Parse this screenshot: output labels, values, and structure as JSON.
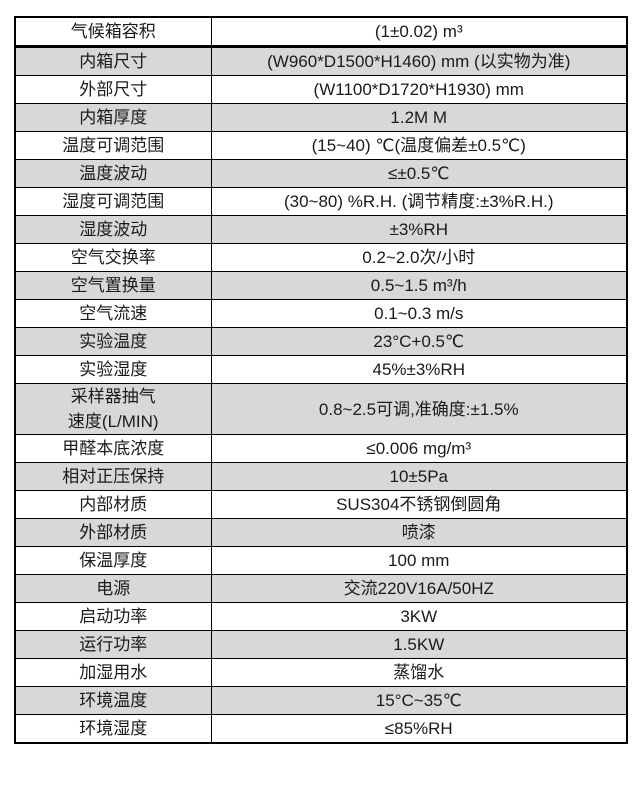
{
  "table": {
    "grey_row_color": "#d8d8d8",
    "border_color": "#000000",
    "rows": [
      {
        "label": "气候箱容积",
        "value": "(1±0.02) m³"
      },
      {
        "label": "内箱尺寸",
        "value": "(W960*D1500*H1460) mm (以实物为准)"
      },
      {
        "label": "外部尺寸",
        "value": "(W1100*D1720*H1930) mm"
      },
      {
        "label": "内箱厚度",
        "value": "1.2M M"
      },
      {
        "label": "温度可调范围",
        "value": "(15~40) ℃(温度偏差±0.5℃)"
      },
      {
        "label": "温度波动",
        "value": "≤±0.5℃"
      },
      {
        "label": "湿度可调范围",
        "value": "(30~80) %R.H. (调节精度:±3%R.H.)"
      },
      {
        "label": "湿度波动",
        "value": "±3%RH"
      },
      {
        "label": "空气交换率",
        "value": "0.2~2.0次/小时"
      },
      {
        "label": "空气置换量",
        "value": "0.5~1.5 m³/h"
      },
      {
        "label": "空气流速",
        "value": "0.1~0.3 m/s"
      },
      {
        "label": "实验温度",
        "value": "23°C+0.5℃"
      },
      {
        "label": "实验湿度",
        "value": "45%±3%RH"
      },
      {
        "label": "采样器抽气\n速度(L/MIN)",
        "value": "0.8~2.5可调,准确度:±1.5%"
      },
      {
        "label": "甲醛本底浓度",
        "value": "≤0.006 mg/m³"
      },
      {
        "label": "相对正压保持",
        "value": "10±5Pa"
      },
      {
        "label": "内部材质",
        "value": "SUS304不锈钢倒圆角"
      },
      {
        "label": "外部材质",
        "value": "喷漆"
      },
      {
        "label": "保温厚度",
        "value": "100 mm"
      },
      {
        "label": "电源",
        "value": "交流220V16A/50HZ"
      },
      {
        "label": "启动功率",
        "value": "3KW"
      },
      {
        "label": "运行功率",
        "value": "1.5KW"
      },
      {
        "label": "加湿用水",
        "value": "蒸馏水"
      },
      {
        "label": "环境温度",
        "value": "15°C~35℃"
      },
      {
        "label": "环境湿度",
        "value": "≤85%RH"
      }
    ]
  }
}
